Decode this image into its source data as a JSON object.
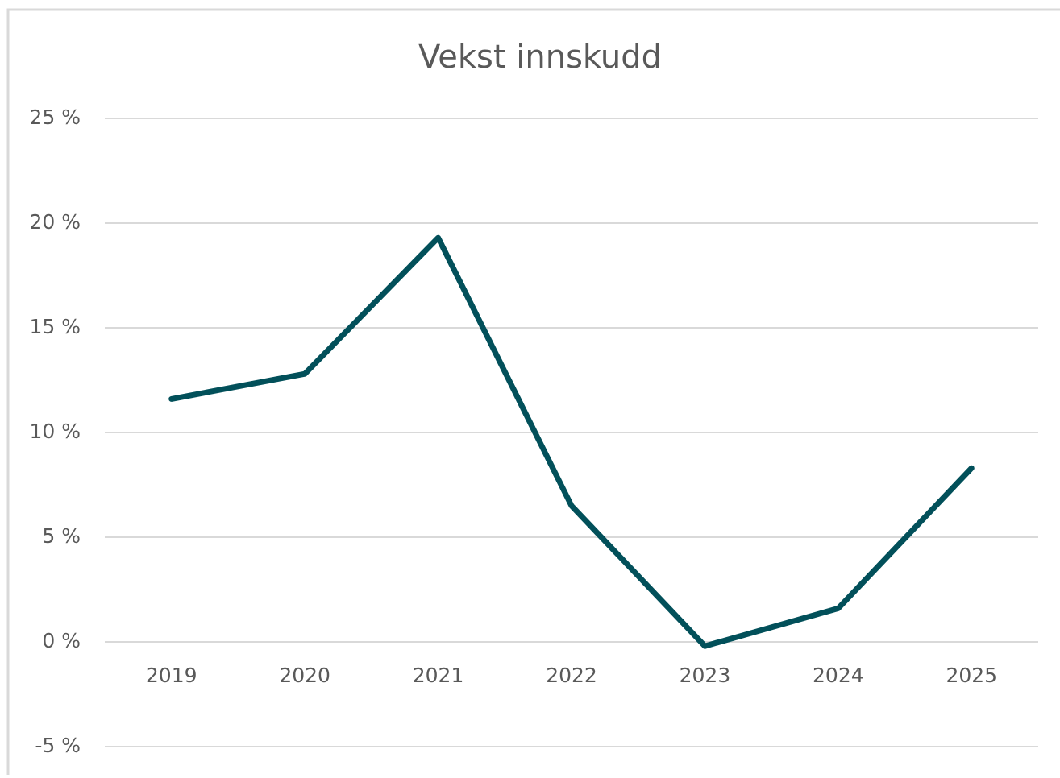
{
  "chart_data": {
    "type": "line",
    "title": "Vekst innskudd",
    "categories": [
      "2019",
      "2020",
      "2021",
      "2022",
      "2023",
      "2024",
      "2025"
    ],
    "series": [
      {
        "name": "Vekst innskudd",
        "color": "#02505a",
        "values": [
          11.6,
          12.8,
          19.3,
          6.5,
          -0.2,
          1.6,
          8.3
        ]
      }
    ],
    "ylim": [
      -5,
      25
    ],
    "yticks": [
      {
        "value": -5,
        "label": "-5 %"
      },
      {
        "value": 0,
        "label": "0 %"
      },
      {
        "value": 5,
        "label": "5 %"
      },
      {
        "value": 10,
        "label": "10 %"
      },
      {
        "value": 15,
        "label": "15 %"
      },
      {
        "value": 20,
        "label": "20 %"
      },
      {
        "value": 25,
        "label": "25 %"
      }
    ],
    "grid": true
  }
}
